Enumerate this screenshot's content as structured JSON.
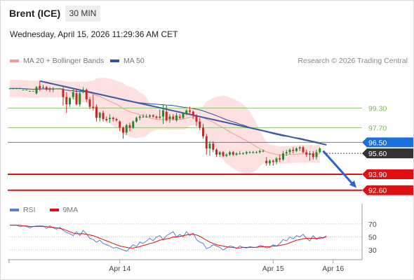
{
  "header": {
    "instrument": "Brent (ICE)",
    "timeframe": "30 MIN",
    "datetime": "Wednesday, April 15, 2026 11:29:36 AM CET",
    "credit": "Research © 2026 Trading Central"
  },
  "colors": {
    "bollinger_fill": "#fde1e1",
    "ma20": "#f29a9a",
    "ma50": "#2f5597",
    "trendline": "#3a5ba8",
    "resistance": "#8ec46f",
    "pivot": "#4a7fd6",
    "support": "#e01010",
    "bull_candle": "#1e8c28",
    "bear_candle": "#c62828",
    "rsi": "#5b7fd6",
    "rsi_ma": "#e01010"
  },
  "chart_data": [
    {
      "type": "candlestick",
      "title": "",
      "legend": [
        {
          "name": "MA 20 + Bollinger Bands",
          "color": "#f29a9a"
        },
        {
          "name": "MA 50",
          "color": "#2f5597"
        }
      ],
      "legend_position": "top-left",
      "ylim": [
        91.5,
        102.8
      ],
      "x_ticks": [
        {
          "label": "Apr 14",
          "index": 33
        },
        {
          "label": "Apr 15",
          "index": 79
        },
        {
          "label": "Apr 16",
          "index": 97
        }
      ],
      "levels": [
        {
          "value": 99.3,
          "label": "99.30",
          "kind": "resistance"
        },
        {
          "value": 97.7,
          "label": "97.70",
          "kind": "resistance"
        },
        {
          "value": 96.5,
          "label": "96.50",
          "kind": "pivot"
        },
        {
          "value": 93.9,
          "label": "93.90",
          "kind": "support"
        },
        {
          "value": 92.6,
          "label": "92.60",
          "kind": "support"
        }
      ],
      "last_price": {
        "value": 95.6,
        "label": "95.60"
      },
      "forecast_arrow": {
        "from_index": 94,
        "from_value": 95.8,
        "to_index": 104,
        "to_value": 92.8
      },
      "trendline": {
        "from_index": 9,
        "from_value": 101.5,
        "to_index": 95,
        "to_value": 96.3
      },
      "candles": [
        [
          100.9,
          100.9,
          100.9,
          100.9
        ],
        [
          100.9,
          100.9,
          100.9,
          100.9
        ],
        [
          100.9,
          100.9,
          100.9,
          100.9
        ],
        [
          100.9,
          100.9,
          100.9,
          100.9
        ],
        [
          100.8,
          100.8,
          100.8,
          100.8
        ],
        [
          100.8,
          100.8,
          100.8,
          100.8
        ],
        [
          100.7,
          100.7,
          100.7,
          100.7
        ],
        [
          100.7,
          100.7,
          100.7,
          100.7
        ],
        [
          100.5,
          101.1,
          100.4,
          101.0
        ],
        [
          101.1,
          101.5,
          100.7,
          100.9
        ],
        [
          101.0,
          101.2,
          100.9,
          101.0
        ],
        [
          101.0,
          101.1,
          100.7,
          100.8
        ],
        [
          100.9,
          101.0,
          100.6,
          100.8
        ],
        [
          100.8,
          101.0,
          100.6,
          100.9
        ],
        [
          100.9,
          100.9,
          100.9,
          100.9
        ],
        [
          100.9,
          100.9,
          100.9,
          100.9
        ],
        [
          100.8,
          101.0,
          99.5,
          100.2
        ],
        [
          100.2,
          100.6,
          98.9,
          99.6
        ],
        [
          99.6,
          100.2,
          99.4,
          100.1
        ],
        [
          100.2,
          100.9,
          100.0,
          100.6
        ],
        [
          100.5,
          100.9,
          99.5,
          99.6
        ],
        [
          99.6,
          100.7,
          99.4,
          100.5
        ],
        [
          100.6,
          101.0,
          100.5,
          100.8
        ],
        [
          100.8,
          100.9,
          99.8,
          100.0
        ],
        [
          100.0,
          100.2,
          99.2,
          99.4
        ],
        [
          99.4,
          100.4,
          99.1,
          99.3
        ],
        [
          99.4,
          99.6,
          98.2,
          98.5
        ],
        [
          98.5,
          99.0,
          98.2,
          98.9
        ],
        [
          98.9,
          99.1,
          98.2,
          98.4
        ],
        [
          98.4,
          98.6,
          98.2,
          98.3
        ],
        [
          98.4,
          98.8,
          98.1,
          98.5
        ],
        [
          98.5,
          98.6,
          98.2,
          98.4
        ],
        [
          98.4,
          98.5,
          98.2,
          98.3
        ],
        [
          98.2,
          98.3,
          97.4,
          97.7
        ],
        [
          97.7,
          97.8,
          96.8,
          97.3
        ],
        [
          97.3,
          98.0,
          97.1,
          97.9
        ],
        [
          97.9,
          98.1,
          97.4,
          97.7
        ],
        [
          97.7,
          98.3,
          97.6,
          98.2
        ],
        [
          98.2,
          98.6,
          98.1,
          98.5
        ],
        [
          98.5,
          98.7,
          98.3,
          98.6
        ],
        [
          98.6,
          98.8,
          98.5,
          98.6
        ],
        [
          98.6,
          98.8,
          98.5,
          98.6
        ],
        [
          98.6,
          98.8,
          98.5,
          98.7
        ],
        [
          98.7,
          98.8,
          98.5,
          98.6
        ],
        [
          98.6,
          98.7,
          98.4,
          98.5
        ],
        [
          98.5,
          99.2,
          98.4,
          98.6
        ],
        [
          98.6,
          99.6,
          98.0,
          99.1
        ],
        [
          99.0,
          99.5,
          98.2,
          98.3
        ],
        [
          98.4,
          98.8,
          98.1,
          98.6
        ],
        [
          98.6,
          98.8,
          98.3,
          98.4
        ],
        [
          98.3,
          98.9,
          98.2,
          98.7
        ],
        [
          98.6,
          98.8,
          98.4,
          98.5
        ],
        [
          98.5,
          98.9,
          98.4,
          98.9
        ],
        [
          98.8,
          99.2,
          98.7,
          99.1
        ],
        [
          99.1,
          99.4,
          98.8,
          99.0
        ],
        [
          99.0,
          99.1,
          98.4,
          98.7
        ],
        [
          98.7,
          98.8,
          97.8,
          98.2
        ],
        [
          98.2,
          98.5,
          97.5,
          97.7
        ],
        [
          97.7,
          98.0,
          96.8,
          97.0
        ],
        [
          97.0,
          97.2,
          95.5,
          96.0
        ],
        [
          96.0,
          96.6,
          95.4,
          96.4
        ],
        [
          96.4,
          96.6,
          95.7,
          95.9
        ],
        [
          95.9,
          96.0,
          95.3,
          95.5
        ],
        [
          95.5,
          95.8,
          95.3,
          95.7
        ],
        [
          95.7,
          95.8,
          95.3,
          95.4
        ],
        [
          95.4,
          95.6,
          95.3,
          95.5
        ],
        [
          95.5,
          95.8,
          95.4,
          95.7
        ],
        [
          95.7,
          95.8,
          95.4,
          95.5
        ],
        [
          95.5,
          95.7,
          95.4,
          95.6
        ],
        [
          95.6,
          95.8,
          95.5,
          95.6
        ],
        [
          95.6,
          95.7,
          95.5,
          95.6
        ],
        [
          95.6,
          95.8,
          95.5,
          95.7
        ],
        [
          95.7,
          95.8,
          95.6,
          95.7
        ],
        [
          95.7,
          95.8,
          95.6,
          95.7
        ],
        [
          95.7,
          95.8,
          95.6,
          95.7
        ],
        [
          95.7,
          95.9,
          95.6,
          95.8
        ],
        [
          95.8,
          95.9,
          95.7,
          95.8
        ],
        [
          95.0,
          95.3,
          94.6,
          94.8
        ],
        [
          94.8,
          95.1,
          94.6,
          95.0
        ],
        [
          95.0,
          95.1,
          94.6,
          94.9
        ],
        [
          94.9,
          95.3,
          94.7,
          95.2
        ],
        [
          95.2,
          95.5,
          94.9,
          95.1
        ],
        [
          95.1,
          95.8,
          95.0,
          95.6
        ],
        [
          95.6,
          95.9,
          95.4,
          95.7
        ],
        [
          95.7,
          96.0,
          95.5,
          95.9
        ],
        [
          95.9,
          96.1,
          95.6,
          95.8
        ],
        [
          95.8,
          96.1,
          95.7,
          96.0
        ],
        [
          96.0,
          96.2,
          95.8,
          96.1
        ],
        [
          96.1,
          96.2,
          95.6,
          95.7
        ],
        [
          95.7,
          95.9,
          95.3,
          95.5
        ],
        [
          95.5,
          95.8,
          95.0,
          95.6
        ],
        [
          95.6,
          95.8,
          95.1,
          95.3
        ],
        [
          95.3,
          95.9,
          95.1,
          95.7
        ],
        [
          95.7,
          96.1,
          95.6,
          96.0
        ]
      ]
    },
    {
      "type": "line",
      "title": "",
      "legend": [
        {
          "name": "RSI",
          "color": "#5b7fd6"
        },
        {
          "name": "9MA",
          "color": "#e01010"
        }
      ],
      "legend_position": "top-left",
      "ylim": [
        15,
        85
      ],
      "y_ticks": [
        {
          "value": 70,
          "label": "70"
        },
        {
          "value": 50,
          "label": "50"
        },
        {
          "value": 30,
          "label": "30"
        }
      ],
      "series": [
        {
          "name": "RSI",
          "values": [
            68,
            68,
            68,
            66,
            67,
            66,
            64,
            66,
            67,
            67,
            67,
            63,
            67,
            64,
            62,
            65,
            60,
            57,
            55,
            52,
            58,
            52,
            60,
            55,
            48,
            46,
            42,
            45,
            40,
            38,
            36,
            33,
            34,
            32,
            30,
            28,
            33,
            38,
            35,
            42,
            40,
            44,
            48,
            44,
            50,
            52,
            46,
            52,
            55,
            58,
            50,
            54,
            50,
            58,
            52,
            56,
            46,
            42,
            40,
            32,
            34,
            38,
            36,
            34,
            30,
            33,
            36,
            35,
            32,
            36,
            34,
            33,
            35,
            34,
            34,
            37,
            36,
            33,
            34,
            38,
            36,
            40,
            46,
            44,
            50,
            47,
            52,
            50,
            54,
            48,
            44,
            52,
            46,
            50,
            48,
            52
          ]
        },
        {
          "name": "9MA",
          "values": [
            68,
            68,
            68,
            68,
            67,
            67,
            66,
            66,
            66,
            66,
            66,
            66,
            65,
            65,
            64,
            63,
            62,
            60,
            58,
            56,
            55,
            55,
            55,
            54,
            53,
            52,
            50,
            48,
            46,
            44,
            42,
            40,
            38,
            36,
            35,
            34,
            33,
            33,
            34,
            35,
            37,
            38,
            40,
            41,
            43,
            45,
            46,
            47,
            48,
            50,
            50,
            51,
            52,
            53,
            54,
            54,
            53,
            51,
            48,
            45,
            42,
            40,
            38,
            37,
            36,
            35,
            34,
            34,
            33,
            33,
            34,
            34,
            34,
            34,
            34,
            35,
            35,
            35,
            35,
            36,
            36,
            37,
            38,
            39,
            41,
            43,
            45,
            46,
            47,
            48,
            48,
            48,
            48,
            48,
            49,
            50
          ]
        }
      ]
    }
  ]
}
